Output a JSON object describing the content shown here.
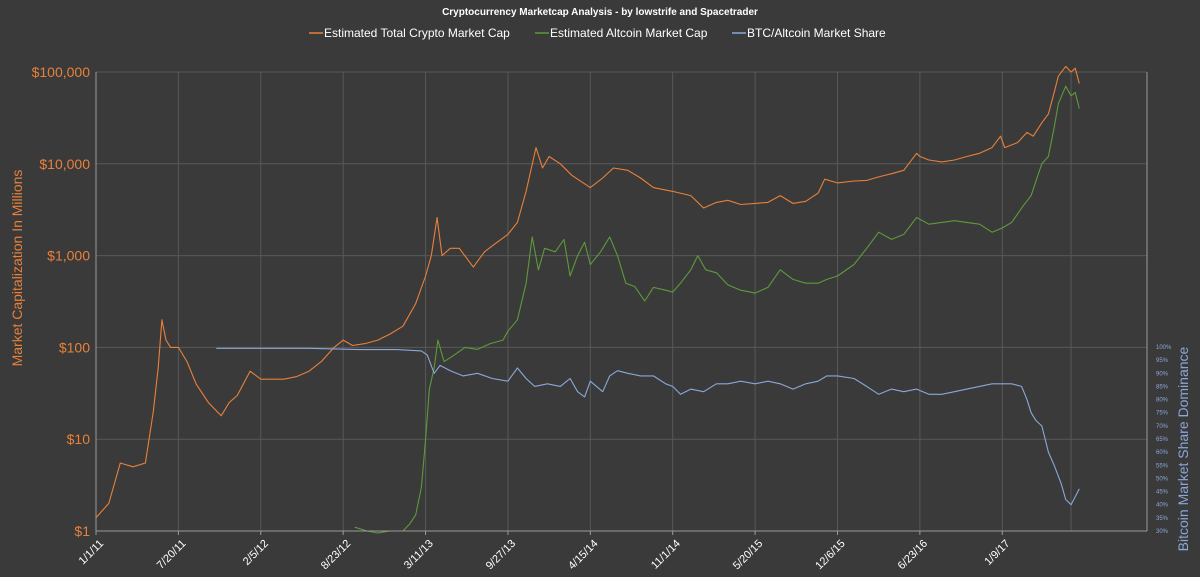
{
  "chart_data": {
    "type": "line",
    "title": "Cryptocurrency Marketcap Analysis - by lowstrife and Spacetrader",
    "ylabel": "Market Capitalization In Millions",
    "y2label": "Bitcoin Market Share Dominance",
    "legend_position": "top",
    "grid": true,
    "y_scale": "log",
    "ylim": [
      1,
      100000
    ],
    "y2lim": [
      30,
      100
    ],
    "x_ticks": [
      "1/1/11",
      "7/20/11",
      "2/5/12",
      "8/23/12",
      "3/11/13",
      "9/27/13",
      "4/15/14",
      "11/1/14",
      "5/20/15",
      "12/6/15",
      "6/23/16",
      "1/9/17"
    ],
    "y_ticks": [
      "$1",
      "$10",
      "$100",
      "$1,000",
      "$10,000",
      "$100,000"
    ],
    "y2_ticks": [
      "30%",
      "35%",
      "40%",
      "45%",
      "50%",
      "55%",
      "60%",
      "65%",
      "70%",
      "75%",
      "80%",
      "85%",
      "90%",
      "95%",
      "100%"
    ],
    "colors": {
      "total": "#e8803a",
      "altcoin": "#5e9a3a",
      "share": "#8aa8d8",
      "background": "#3a3a3a",
      "grid": "#585858"
    },
    "series": [
      {
        "name": "Estimated Total Crypto Market Cap",
        "axis": "left",
        "points": [
          [
            "2011-01-01",
            1.4
          ],
          [
            "2011-02-01",
            2
          ],
          [
            "2011-03-01",
            5.5
          ],
          [
            "2011-04-01",
            5
          ],
          [
            "2011-05-01",
            5.5
          ],
          [
            "2011-05-20",
            20
          ],
          [
            "2011-06-01",
            60
          ],
          [
            "2011-06-10",
            200
          ],
          [
            "2011-06-20",
            120
          ],
          [
            "2011-07-01",
            100
          ],
          [
            "2011-07-20",
            100
          ],
          [
            "2011-08-10",
            70
          ],
          [
            "2011-09-01",
            40
          ],
          [
            "2011-10-01",
            25
          ],
          [
            "2011-11-01",
            18
          ],
          [
            "2011-11-20",
            25
          ],
          [
            "2011-12-10",
            30
          ],
          [
            "2012-01-10",
            55
          ],
          [
            "2012-02-05",
            45
          ],
          [
            "2012-03-01",
            45
          ],
          [
            "2012-04-01",
            45
          ],
          [
            "2012-05-01",
            48
          ],
          [
            "2012-06-01",
            55
          ],
          [
            "2012-07-01",
            70
          ],
          [
            "2012-08-01",
            100
          ],
          [
            "2012-08-23",
            120
          ],
          [
            "2012-09-15",
            105
          ],
          [
            "2012-10-15",
            110
          ],
          [
            "2012-11-15",
            120
          ],
          [
            "2012-12-15",
            140
          ],
          [
            "2013-01-15",
            170
          ],
          [
            "2013-02-15",
            300
          ],
          [
            "2013-03-11",
            600
          ],
          [
            "2013-03-25",
            1000
          ],
          [
            "2013-04-08",
            2600
          ],
          [
            "2013-04-20",
            1000
          ],
          [
            "2013-05-10",
            1200
          ],
          [
            "2013-06-01",
            1200
          ],
          [
            "2013-07-05",
            750
          ],
          [
            "2013-08-01",
            1100
          ],
          [
            "2013-09-01",
            1400
          ],
          [
            "2013-09-27",
            1700
          ],
          [
            "2013-10-20",
            2300
          ],
          [
            "2013-11-10",
            5000
          ],
          [
            "2013-12-04",
            15000
          ],
          [
            "2013-12-20",
            9000
          ],
          [
            "2014-01-05",
            12000
          ],
          [
            "2014-02-01",
            10000
          ],
          [
            "2014-03-01",
            7500
          ],
          [
            "2014-04-15",
            5500
          ],
          [
            "2014-05-15",
            7000
          ],
          [
            "2014-06-10",
            9000
          ],
          [
            "2014-07-15",
            8500
          ],
          [
            "2014-08-15",
            7000
          ],
          [
            "2014-09-15",
            5500
          ],
          [
            "2014-11-01",
            5000
          ],
          [
            "2014-12-15",
            4500
          ],
          [
            "2015-01-15",
            3300
          ],
          [
            "2015-02-15",
            3800
          ],
          [
            "2015-03-15",
            4000
          ],
          [
            "2015-04-15",
            3600
          ],
          [
            "2015-05-20",
            3700
          ],
          [
            "2015-06-20",
            3800
          ],
          [
            "2015-07-20",
            4500
          ],
          [
            "2015-08-20",
            3700
          ],
          [
            "2015-09-20",
            3900
          ],
          [
            "2015-10-20",
            4800
          ],
          [
            "2015-11-05",
            6800
          ],
          [
            "2015-12-06",
            6200
          ],
          [
            "2016-01-15",
            6500
          ],
          [
            "2016-02-15",
            6600
          ],
          [
            "2016-03-15",
            7200
          ],
          [
            "2016-04-15",
            7800
          ],
          [
            "2016-05-15",
            8500
          ],
          [
            "2016-06-15",
            13000
          ],
          [
            "2016-06-23",
            12000
          ],
          [
            "2016-07-15",
            11000
          ],
          [
            "2016-08-15",
            10500
          ],
          [
            "2016-09-15",
            11000
          ],
          [
            "2016-10-15",
            12000
          ],
          [
            "2016-11-15",
            13000
          ],
          [
            "2016-12-15",
            15000
          ],
          [
            "2017-01-05",
            20000
          ],
          [
            "2017-01-15",
            15000
          ],
          [
            "2017-02-15",
            17000
          ],
          [
            "2017-03-10",
            22000
          ],
          [
            "2017-03-25",
            20000
          ],
          [
            "2017-04-15",
            28000
          ],
          [
            "2017-05-01",
            35000
          ],
          [
            "2017-05-15",
            60000
          ],
          [
            "2017-05-25",
            90000
          ],
          [
            "2017-06-12",
            115000
          ],
          [
            "2017-06-25",
            100000
          ],
          [
            "2017-07-05",
            110000
          ],
          [
            "2017-07-15",
            75000
          ]
        ]
      },
      {
        "name": "Estimated Altcoin Market Cap",
        "axis": "left",
        "points": [
          [
            "2012-09-20",
            1.1
          ],
          [
            "2012-10-20",
            1
          ],
          [
            "2012-11-15",
            0.95
          ],
          [
            "2012-12-15",
            1
          ],
          [
            "2013-01-15",
            1
          ],
          [
            "2013-02-01",
            1.2
          ],
          [
            "2013-02-15",
            1.5
          ],
          [
            "2013-03-01",
            3
          ],
          [
            "2013-03-11",
            10
          ],
          [
            "2013-03-20",
            35
          ],
          [
            "2013-04-01",
            60
          ],
          [
            "2013-04-10",
            120
          ],
          [
            "2013-04-25",
            70
          ],
          [
            "2013-05-15",
            80
          ],
          [
            "2013-06-15",
            100
          ],
          [
            "2013-07-15",
            95
          ],
          [
            "2013-08-15",
            110
          ],
          [
            "2013-09-15",
            120
          ],
          [
            "2013-09-27",
            150
          ],
          [
            "2013-10-20",
            200
          ],
          [
            "2013-11-10",
            500
          ],
          [
            "2013-11-25",
            1600
          ],
          [
            "2013-12-10",
            700
          ],
          [
            "2013-12-25",
            1200
          ],
          [
            "2014-01-20",
            1100
          ],
          [
            "2014-02-10",
            1500
          ],
          [
            "2014-02-25",
            600
          ],
          [
            "2014-03-15",
            1000
          ],
          [
            "2014-04-01",
            1400
          ],
          [
            "2014-04-15",
            800
          ],
          [
            "2014-05-10",
            1100
          ],
          [
            "2014-06-01",
            1600
          ],
          [
            "2014-06-20",
            1000
          ],
          [
            "2014-07-10",
            500
          ],
          [
            "2014-08-01",
            460
          ],
          [
            "2014-08-25",
            320
          ],
          [
            "2014-09-15",
            450
          ],
          [
            "2014-10-15",
            420
          ],
          [
            "2014-11-01",
            400
          ],
          [
            "2014-11-20",
            500
          ],
          [
            "2014-12-15",
            700
          ],
          [
            "2015-01-01",
            1000
          ],
          [
            "2015-01-20",
            700
          ],
          [
            "2015-02-15",
            650
          ],
          [
            "2015-03-15",
            480
          ],
          [
            "2015-04-15",
            420
          ],
          [
            "2015-05-20",
            390
          ],
          [
            "2015-06-20",
            450
          ],
          [
            "2015-07-20",
            700
          ],
          [
            "2015-08-20",
            550
          ],
          [
            "2015-09-20",
            500
          ],
          [
            "2015-10-20",
            500
          ],
          [
            "2015-11-10",
            550
          ],
          [
            "2015-12-06",
            600
          ],
          [
            "2016-01-15",
            800
          ],
          [
            "2016-02-15",
            1200
          ],
          [
            "2016-03-15",
            1800
          ],
          [
            "2016-04-15",
            1500
          ],
          [
            "2016-05-15",
            1700
          ],
          [
            "2016-06-15",
            2600
          ],
          [
            "2016-07-15",
            2200
          ],
          [
            "2016-08-15",
            2300
          ],
          [
            "2016-09-15",
            2400
          ],
          [
            "2016-10-15",
            2300
          ],
          [
            "2016-11-15",
            2200
          ],
          [
            "2016-12-15",
            1800
          ],
          [
            "2017-01-09",
            2000
          ],
          [
            "2017-02-01",
            2300
          ],
          [
            "2017-03-01",
            3500
          ],
          [
            "2017-03-20",
            4500
          ],
          [
            "2017-04-15",
            10000
          ],
          [
            "2017-05-01",
            12000
          ],
          [
            "2017-05-15",
            25000
          ],
          [
            "2017-05-25",
            45000
          ],
          [
            "2017-06-12",
            70000
          ],
          [
            "2017-06-25",
            55000
          ],
          [
            "2017-07-05",
            60000
          ],
          [
            "2017-07-15",
            40000
          ]
        ]
      },
      {
        "name": "BTC/Altcoin Market Share",
        "axis": "right",
        "points": [
          [
            "2011-10-20",
            99.5
          ],
          [
            "2012-06-01",
            99.5
          ],
          [
            "2012-10-01",
            99
          ],
          [
            "2013-01-01",
            99
          ],
          [
            "2013-03-01",
            98.5
          ],
          [
            "2013-03-15",
            97
          ],
          [
            "2013-04-01",
            90
          ],
          [
            "2013-04-15",
            93
          ],
          [
            "2013-05-10",
            91
          ],
          [
            "2013-06-10",
            89
          ],
          [
            "2013-07-15",
            90
          ],
          [
            "2013-08-20",
            88
          ],
          [
            "2013-09-27",
            87
          ],
          [
            "2013-10-20",
            92
          ],
          [
            "2013-11-10",
            88
          ],
          [
            "2013-12-01",
            85
          ],
          [
            "2014-01-01",
            86
          ],
          [
            "2014-02-01",
            85
          ],
          [
            "2014-02-25",
            88
          ],
          [
            "2014-03-15",
            83
          ],
          [
            "2014-04-01",
            81
          ],
          [
            "2014-04-15",
            87
          ],
          [
            "2014-05-15",
            83
          ],
          [
            "2014-06-01",
            89
          ],
          [
            "2014-06-20",
            91
          ],
          [
            "2014-07-15",
            90
          ],
          [
            "2014-08-15",
            89
          ],
          [
            "2014-09-15",
            89
          ],
          [
            "2014-10-15",
            86
          ],
          [
            "2014-11-01",
            85
          ],
          [
            "2014-11-20",
            82
          ],
          [
            "2014-12-15",
            84
          ],
          [
            "2015-01-15",
            83
          ],
          [
            "2015-02-15",
            86
          ],
          [
            "2015-03-15",
            86
          ],
          [
            "2015-04-15",
            87
          ],
          [
            "2015-05-20",
            86
          ],
          [
            "2015-06-20",
            87
          ],
          [
            "2015-07-20",
            86
          ],
          [
            "2015-08-20",
            84
          ],
          [
            "2015-09-20",
            86
          ],
          [
            "2015-10-20",
            87
          ],
          [
            "2015-11-10",
            89
          ],
          [
            "2015-12-06",
            89
          ],
          [
            "2016-01-15",
            88
          ],
          [
            "2016-02-15",
            85
          ],
          [
            "2016-03-15",
            82
          ],
          [
            "2016-04-15",
            84
          ],
          [
            "2016-05-15",
            83
          ],
          [
            "2016-06-15",
            84
          ],
          [
            "2016-07-15",
            82
          ],
          [
            "2016-08-15",
            82
          ],
          [
            "2016-09-15",
            83
          ],
          [
            "2016-10-15",
            84
          ],
          [
            "2016-11-15",
            85
          ],
          [
            "2016-12-15",
            86
          ],
          [
            "2017-01-09",
            86
          ],
          [
            "2017-02-01",
            86
          ],
          [
            "2017-02-25",
            85
          ],
          [
            "2017-03-10",
            80
          ],
          [
            "2017-03-20",
            75
          ],
          [
            "2017-04-01",
            72
          ],
          [
            "2017-04-15",
            70
          ],
          [
            "2017-05-01",
            60
          ],
          [
            "2017-05-15",
            55
          ],
          [
            "2017-06-01",
            48
          ],
          [
            "2017-06-12",
            42
          ],
          [
            "2017-06-25",
            40
          ],
          [
            "2017-07-05",
            43
          ],
          [
            "2017-07-15",
            46
          ]
        ]
      }
    ]
  }
}
